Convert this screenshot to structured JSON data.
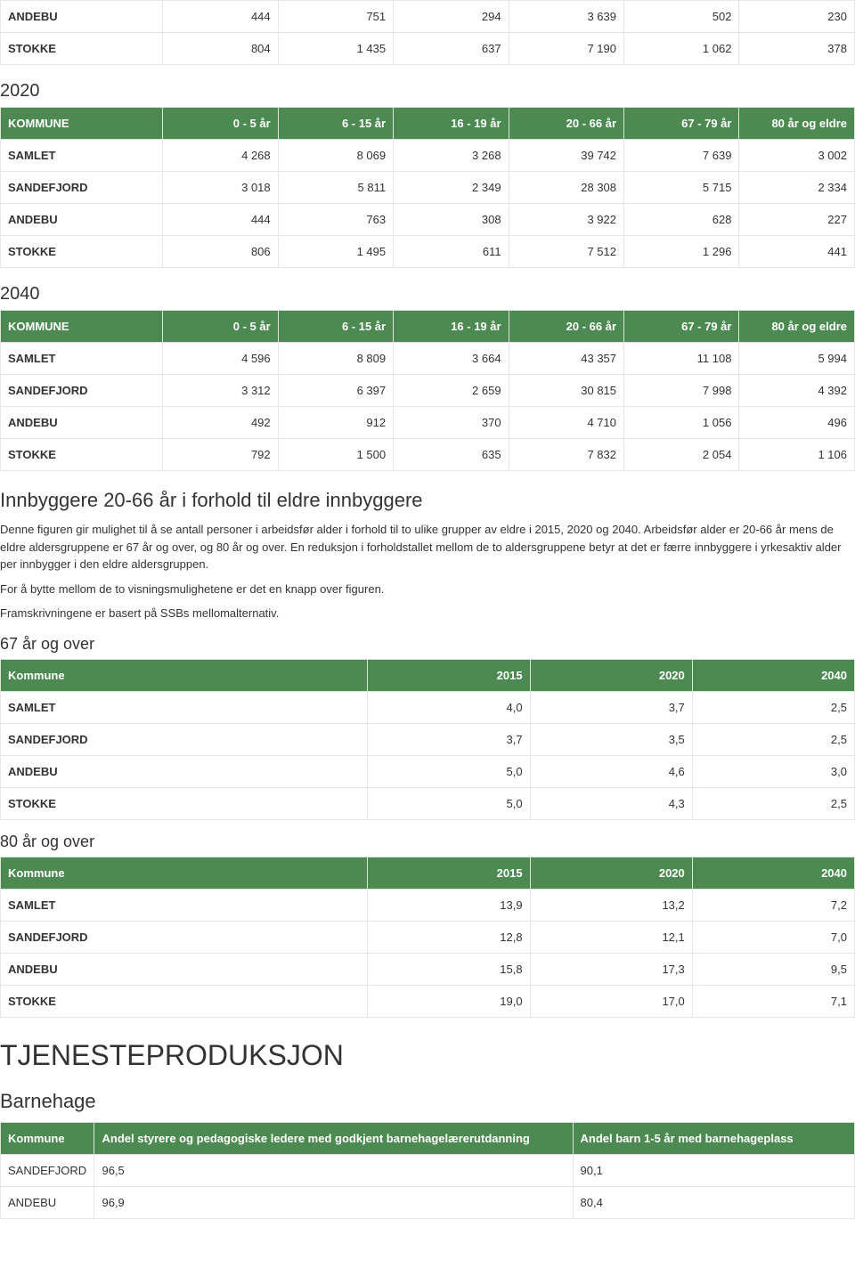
{
  "pre_rows": [
    [
      "ANDEBU",
      "444",
      "751",
      "294",
      "3 639",
      "502",
      "230"
    ],
    [
      "STOKKE",
      "804",
      "1 435",
      "637",
      "7 190",
      "1 062",
      "378"
    ]
  ],
  "year_2020": {
    "title": "2020",
    "headers": [
      "KOMMUNE",
      "0 - 5 år",
      "6 - 15 år",
      "16 - 19 år",
      "20 - 66 år",
      "67 - 79 år",
      "80 år og eldre"
    ],
    "rows": [
      [
        "SAMLET",
        "4 268",
        "8 069",
        "3 268",
        "39 742",
        "7 639",
        "3 002"
      ],
      [
        "SANDEFJORD",
        "3 018",
        "5 811",
        "2 349",
        "28 308",
        "5 715",
        "2 334"
      ],
      [
        "ANDEBU",
        "444",
        "763",
        "308",
        "3 922",
        "628",
        "227"
      ],
      [
        "STOKKE",
        "806",
        "1 495",
        "611",
        "7 512",
        "1 296",
        "441"
      ]
    ]
  },
  "year_2040": {
    "title": "2040",
    "headers": [
      "KOMMUNE",
      "0 - 5 år",
      "6 - 15 år",
      "16 - 19 år",
      "20 - 66 år",
      "67 - 79 år",
      "80 år og eldre"
    ],
    "rows": [
      [
        "SAMLET",
        "4 596",
        "8 809",
        "3 664",
        "43 357",
        "11 108",
        "5 994"
      ],
      [
        "SANDEFJORD",
        "3 312",
        "6 397",
        "2 659",
        "30 815",
        "7 998",
        "4 392"
      ],
      [
        "ANDEBU",
        "492",
        "912",
        "370",
        "4 710",
        "1 056",
        "496"
      ],
      [
        "STOKKE",
        "792",
        "1 500",
        "635",
        "7 832",
        "2 054",
        "1 106"
      ]
    ]
  },
  "ratio_section": {
    "title": "Innbyggere 20-66 år i forhold til eldre innbyggere",
    "p1": "Denne figuren gir mulighet til å se antall personer i arbeidsfør alder i forhold til to ulike grupper av eldre i 2015, 2020 og 2040. Arbeidsfør alder er 20-66 år mens de eldre aldersgruppene er 67 år og over, og 80 år og over. En reduksjon i forholdstallet mellom de to aldersgruppene betyr at det er færre innbyggere i yrkesaktiv alder per innbygger i den eldre aldersgruppen.",
    "p2": "For å bytte mellom de to visningsmulighetene er det en knapp over figuren.",
    "p3": "Framskrivningene er basert på SSBs mellomalternativ."
  },
  "group67": {
    "title": "67 år og over",
    "headers": [
      "Kommune",
      "2015",
      "2020",
      "2040"
    ],
    "rows": [
      [
        "SAMLET",
        "4,0",
        "3,7",
        "2,5"
      ],
      [
        "SANDEFJORD",
        "3,7",
        "3,5",
        "2,5"
      ],
      [
        "ANDEBU",
        "5,0",
        "4,6",
        "3,0"
      ],
      [
        "STOKKE",
        "5,0",
        "4,3",
        "2,5"
      ]
    ]
  },
  "group80": {
    "title": "80 år og over",
    "headers": [
      "Kommune",
      "2015",
      "2020",
      "2040"
    ],
    "rows": [
      [
        "SAMLET",
        "13,9",
        "13,2",
        "7,2"
      ],
      [
        "SANDEFJORD",
        "12,8",
        "12,1",
        "7,0"
      ],
      [
        "ANDEBU",
        "15,8",
        "17,3",
        "9,5"
      ],
      [
        "STOKKE",
        "19,0",
        "17,0",
        "7,1"
      ]
    ]
  },
  "tjeneste": {
    "title": "TJENESTEPRODUKSJON",
    "barnehage": {
      "title": "Barnehage",
      "headers": [
        "Kommune",
        "Andel styrere og pedagogiske ledere med godkjent barnehagelærerutdanning",
        "Andel barn 1-5 år med barnehageplass"
      ],
      "rows": [
        [
          "SANDEFJORD",
          "96,5",
          "90,1"
        ],
        [
          "ANDEBU",
          "96,9",
          "80,4"
        ]
      ]
    }
  },
  "table_style": {
    "header_bg": "#4d8a52",
    "header_text": "#ffffff",
    "cell_border": "#e6e6e6",
    "cell_bg": "#ffffff",
    "font_size_body": 13,
    "col_widths_7": [
      "19%",
      "13.5%",
      "13.5%",
      "13.5%",
      "13.5%",
      "13.5%",
      "13.5%"
    ],
    "col_widths_4": [
      "43%",
      "19%",
      "19%",
      "19%"
    ],
    "col_widths_barnehage": [
      "11%",
      "56%",
      "33%"
    ]
  }
}
